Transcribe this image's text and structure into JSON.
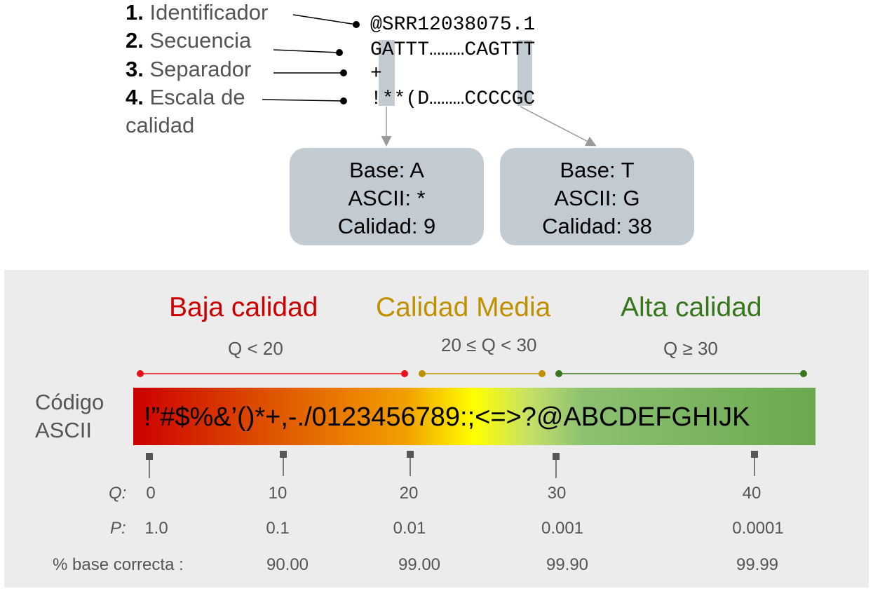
{
  "fastq": {
    "labels": [
      {
        "num": "1.",
        "text": "Identificador"
      },
      {
        "num": "2.",
        "text": "Secuencia"
      },
      {
        "num": "3.",
        "text": "Separador"
      },
      {
        "num": "4.",
        "text": "Escala de"
      }
    ],
    "label4_line2": "calidad",
    "lines": [
      "@SRR12038075.1",
      "GATTT………CAGTTT",
      "+",
      "!**(D………CCCCGC"
    ]
  },
  "callouts": [
    {
      "base": "Base: A",
      "ascii": "ASCII: *",
      "quality": "Calidad: 9"
    },
    {
      "base": "Base: T",
      "ascii": "ASCII: G",
      "quality": "Calidad: 38"
    }
  ],
  "scale": {
    "categories": [
      {
        "name": "Baja calidad",
        "range": "Q < 20",
        "color": "#cc0000",
        "line_color": "#e8101a"
      },
      {
        "name": "Calidad Media",
        "range": "20 ≤ Q < 30",
        "color": "#bf9000",
        "line_color": "#bf9000"
      },
      {
        "name": "Alta calidad",
        "range": "Q ≥ 30",
        "color": "#38761d",
        "line_color": "#38761d"
      }
    ],
    "ascii_label_1": "Código",
    "ascii_label_2": "ASCII",
    "ascii_chars": "!”#$%&’()*+,-./0123456789:;<=>?@ABCDEFGHIJK",
    "q_label": "Q:",
    "p_label": "P:",
    "pct_label": "% base correcta :",
    "q_values": [
      "0",
      "10",
      "20",
      "30",
      "40"
    ],
    "p_values": [
      "1.0",
      "0.1",
      "0.01",
      "0.001",
      "0.0001"
    ],
    "pct_values": [
      "90.00",
      "99.00",
      "99.90",
      "99.99"
    ]
  },
  "colors": {
    "callout_bg": "#c1cbd1",
    "panel_bg": "#ececec",
    "gradient": [
      "#cc0000",
      "#ffff00",
      "#6aa84f"
    ]
  }
}
